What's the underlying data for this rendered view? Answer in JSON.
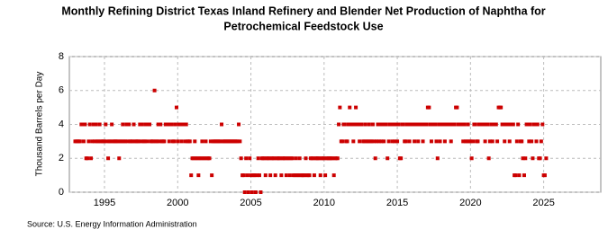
{
  "chart_data": {
    "type": "scatter",
    "title": [
      "Monthly Refining District Texas Inland Refinery and Blender Net Production of Naphtha for",
      "Petrochemical Feedstock Use"
    ],
    "y_label": "Thousand Barrels per Day",
    "source": "Source: U.S. Energy Information Administration",
    "xlim": [
      1992.6,
      2028.9
    ],
    "xticks": [
      1995,
      2000,
      2005,
      2010,
      2015,
      2020,
      2025
    ],
    "ylim": [
      0,
      8
    ],
    "yticks": [
      0,
      2,
      4,
      6,
      8
    ],
    "grid": true,
    "series": [
      {
        "color": "#cc0000",
        "x": [
          1993,
          1993.08,
          1993.17,
          1993.25,
          1993.33,
          1993.42,
          1993.5,
          1993.58,
          1993.67,
          1993.75,
          1993.83,
          1993.92,
          1994,
          1994.08,
          1994.17,
          1994.25,
          1994.33,
          1994.42,
          1994.5,
          1994.58,
          1994.67,
          1994.75,
          1994.83,
          1994.92,
          1995,
          1995.08,
          1995.17,
          1995.25,
          1995.33,
          1995.42,
          1995.5,
          1995.58,
          1995.67,
          1995.75,
          1995.83,
          1995.92,
          1996,
          1996.08,
          1996.17,
          1996.25,
          1996.33,
          1996.42,
          1996.5,
          1996.58,
          1996.67,
          1996.75,
          1996.83,
          1996.92,
          1997,
          1997.08,
          1997.17,
          1997.25,
          1997.33,
          1997.42,
          1997.5,
          1997.58,
          1997.67,
          1997.75,
          1997.83,
          1997.92,
          1998,
          1998.08,
          1998.17,
          1998.25,
          1998.33,
          1998.42,
          1998.5,
          1998.58,
          1998.67,
          1998.75,
          1998.83,
          1998.92,
          1999,
          1999.08,
          1999.17,
          1999.25,
          1999.33,
          1999.42,
          1999.5,
          1999.58,
          1999.67,
          1999.75,
          1999.83,
          1999.92,
          2000,
          2000.08,
          2000.17,
          2000.25,
          2000.33,
          2000.42,
          2000.5,
          2000.58,
          2000.67,
          2000.75,
          2000.83,
          2000.92,
          2001,
          2001.08,
          2001.17,
          2001.25,
          2001.33,
          2001.42,
          2001.5,
          2001.58,
          2001.67,
          2001.75,
          2001.83,
          2001.92,
          2002,
          2002.08,
          2002.17,
          2002.25,
          2002.33,
          2002.42,
          2002.5,
          2002.58,
          2002.67,
          2002.75,
          2002.83,
          2002.92,
          2003,
          2003.08,
          2003.17,
          2003.25,
          2003.33,
          2003.42,
          2003.5,
          2003.58,
          2003.67,
          2003.75,
          2003.83,
          2003.92,
          2004,
          2004.08,
          2004.17,
          2004.25,
          2004.33,
          2004.42,
          2004.5,
          2004.58,
          2004.67,
          2004.75,
          2004.83,
          2004.92,
          2005,
          2005.08,
          2005.17,
          2005.25,
          2005.33,
          2005.42,
          2005.5,
          2005.58,
          2005.67,
          2005.75,
          2005.83,
          2005.92,
          2006,
          2006.08,
          2006.17,
          2006.25,
          2006.33,
          2006.42,
          2006.5,
          2006.58,
          2006.67,
          2006.75,
          2006.83,
          2006.92,
          2007,
          2007.08,
          2007.17,
          2007.25,
          2007.33,
          2007.42,
          2007.5,
          2007.58,
          2007.67,
          2007.75,
          2007.83,
          2007.92,
          2008,
          2008.08,
          2008.17,
          2008.25,
          2008.33,
          2008.42,
          2008.5,
          2008.58,
          2008.67,
          2008.75,
          2008.83,
          2008.92,
          2009,
          2009.08,
          2009.17,
          2009.25,
          2009.33,
          2009.42,
          2009.5,
          2009.58,
          2009.67,
          2009.75,
          2009.83,
          2009.92,
          2010,
          2010.08,
          2010.17,
          2010.25,
          2010.33,
          2010.42,
          2010.5,
          2010.58,
          2010.67,
          2010.75,
          2010.83,
          2010.92,
          2011,
          2011.08,
          2011.17,
          2011.25,
          2011.33,
          2011.42,
          2011.5,
          2011.58,
          2011.67,
          2011.75,
          2011.83,
          2011.92,
          2012,
          2012.08,
          2012.17,
          2012.25,
          2012.33,
          2012.42,
          2012.5,
          2012.58,
          2012.67,
          2012.75,
          2012.83,
          2012.92,
          2013,
          2013.08,
          2013.17,
          2013.25,
          2013.33,
          2013.42,
          2013.5,
          2013.58,
          2013.67,
          2013.75,
          2013.83,
          2013.92,
          2014,
          2014.08,
          2014.17,
          2014.25,
          2014.33,
          2014.42,
          2014.5,
          2014.58,
          2014.67,
          2014.75,
          2014.83,
          2014.92,
          2015,
          2015.08,
          2015.17,
          2015.25,
          2015.33,
          2015.42,
          2015.5,
          2015.58,
          2015.67,
          2015.75,
          2015.83,
          2015.92,
          2016,
          2016.08,
          2016.17,
          2016.25,
          2016.33,
          2016.42,
          2016.5,
          2016.58,
          2016.67,
          2016.75,
          2016.83,
          2016.92,
          2017,
          2017.08,
          2017.17,
          2017.25,
          2017.33,
          2017.42,
          2017.5,
          2017.58,
          2017.67,
          2017.75,
          2017.83,
          2017.92,
          2018,
          2018.08,
          2018.17,
          2018.25,
          2018.33,
          2018.42,
          2018.5,
          2018.58,
          2018.67,
          2018.75,
          2018.83,
          2018.92,
          2019,
          2019.08,
          2019.17,
          2019.25,
          2019.33,
          2019.42,
          2019.5,
          2019.58,
          2019.67,
          2019.75,
          2019.83,
          2019.92,
          2020,
          2020.08,
          2020.17,
          2020.25,
          2020.33,
          2020.42,
          2020.5,
          2020.58,
          2020.67,
          2020.75,
          2020.83,
          2020.92,
          2021,
          2021.08,
          2021.17,
          2021.25,
          2021.33,
          2021.42,
          2021.5,
          2021.58,
          2021.67,
          2021.75,
          2021.83,
          2021.92,
          2022,
          2022.08,
          2022.17,
          2022.25,
          2022.33,
          2022.42,
          2022.5,
          2022.58,
          2022.67,
          2022.75,
          2022.83,
          2022.92,
          2023,
          2023.08,
          2023.17,
          2023.25,
          2023.33,
          2023.42,
          2023.5,
          2023.58,
          2023.67,
          2023.75,
          2023.83,
          2023.92,
          2024,
          2024.08,
          2024.17,
          2024.25,
          2024.33,
          2024.42,
          2024.5,
          2024.58,
          2024.67,
          2024.75,
          2024.83,
          2024.92,
          2025,
          2025.08,
          2025.17
        ],
        "values": [
          3,
          3,
          3,
          3,
          3,
          4,
          4,
          3,
          4,
          2,
          2,
          3,
          4,
          2,
          3,
          4,
          3,
          4,
          3,
          3,
          4,
          3,
          3,
          3,
          3,
          4,
          3,
          2,
          3,
          3,
          4,
          3,
          3,
          3,
          3,
          3,
          2,
          3,
          3,
          4,
          3,
          3,
          4,
          3,
          4,
          3,
          3,
          3,
          4,
          3,
          3,
          3,
          3,
          4,
          3,
          4,
          3,
          3,
          4,
          3,
          4,
          4,
          3,
          3,
          3,
          6,
          3,
          3,
          4,
          3,
          4,
          3,
          3,
          3,
          4,
          4,
          4,
          3,
          4,
          4,
          3,
          3,
          4,
          5,
          3,
          4,
          4,
          3,
          4,
          4,
          3,
          4,
          3,
          3,
          3,
          1,
          2,
          2,
          3,
          2,
          2,
          1,
          2,
          2,
          3,
          2,
          2,
          3,
          2,
          2,
          2,
          3,
          1,
          3,
          3,
          3,
          3,
          3,
          3,
          3,
          4,
          3,
          3,
          3,
          3,
          3,
          3,
          3,
          3,
          3,
          3,
          3,
          3,
          3,
          4,
          3,
          2,
          1,
          1,
          0,
          2,
          1,
          0,
          2,
          1,
          0,
          1,
          1,
          0,
          1,
          2,
          1,
          0,
          2,
          2,
          2,
          1,
          2,
          2,
          2,
          1,
          2,
          2,
          2,
          1,
          2,
          2,
          2,
          2,
          1,
          2,
          2,
          2,
          1,
          2,
          2,
          1,
          2,
          2,
          1,
          1,
          2,
          1,
          1,
          2,
          1,
          1,
          1,
          1,
          2,
          1,
          1,
          1,
          2,
          2,
          2,
          1,
          2,
          2,
          2,
          2,
          1,
          2,
          2,
          2,
          1,
          2,
          2,
          2,
          2,
          2,
          2,
          1,
          2,
          2,
          2,
          4,
          5,
          3,
          3,
          4,
          4,
          3,
          3,
          4,
          5,
          4,
          4,
          3,
          4,
          5,
          4,
          4,
          3,
          4,
          4,
          3,
          3,
          4,
          3,
          3,
          4,
          3,
          3,
          4,
          3,
          2,
          3,
          4,
          3,
          4,
          3,
          4,
          3,
          4,
          4,
          2,
          3,
          4,
          4,
          3,
          4,
          3,
          4,
          3,
          4,
          2,
          2,
          4,
          4,
          3,
          3,
          4,
          4,
          3,
          4,
          4,
          4,
          3,
          4,
          4,
          3,
          4,
          4,
          4,
          3,
          4,
          4,
          4,
          5,
          5,
          4,
          3,
          4,
          4,
          4,
          3,
          2,
          4,
          3,
          4,
          4,
          4,
          3,
          4,
          4,
          4,
          4,
          3,
          4,
          4,
          4,
          5,
          5,
          4,
          4,
          4,
          4,
          3,
          4,
          3,
          3,
          4,
          3,
          3,
          2,
          3,
          4,
          4,
          3,
          3,
          4,
          4,
          4,
          4,
          4,
          3,
          4,
          4,
          2,
          3,
          4,
          3,
          4,
          4,
          4,
          3,
          5,
          5,
          5,
          4,
          4,
          3,
          4,
          4,
          4,
          3,
          4,
          4,
          4,
          1,
          1,
          3,
          4,
          1,
          3,
          3,
          2,
          1,
          2,
          4,
          4,
          3,
          4,
          3,
          2,
          4,
          4,
          3,
          4,
          2,
          2,
          3,
          4,
          1,
          1,
          2
        ]
      }
    ]
  }
}
